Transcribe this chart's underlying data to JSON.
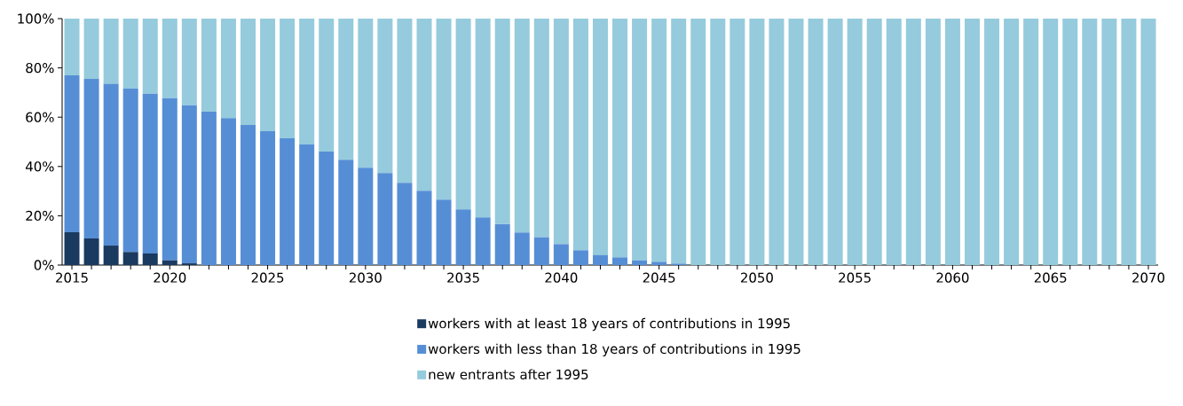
{
  "chart_data": {
    "type": "bar",
    "stacked": true,
    "categories": [
      "2015",
      null,
      null,
      null,
      null,
      "2020",
      null,
      null,
      null,
      null,
      "2025",
      null,
      null,
      null,
      null,
      "2030",
      null,
      null,
      null,
      null,
      "2035",
      null,
      null,
      null,
      null,
      "2040",
      null,
      null,
      null,
      null,
      "2045",
      null,
      null,
      null,
      null,
      "2050",
      null,
      null,
      null,
      null,
      "2055",
      null,
      null,
      null,
      null,
      "2060",
      null,
      null,
      null,
      null,
      "2065",
      null,
      null,
      null,
      null,
      "2070"
    ],
    "series": [
      {
        "name": "workers with at least 18 years of contributions in 1995",
        "color": "#1a3a5f",
        "values": [
          13.3,
          10.8,
          7.9,
          5.3,
          4.7,
          1.9,
          0.7,
          0,
          0,
          0,
          0,
          0,
          0,
          0,
          0,
          0,
          0,
          0,
          0,
          0,
          0,
          0,
          0,
          0,
          0,
          0,
          0,
          0,
          0,
          0,
          0,
          0,
          0,
          0,
          0,
          0,
          0,
          0,
          0,
          0,
          0,
          0,
          0,
          0,
          0,
          0,
          0,
          0,
          0,
          0,
          0,
          0,
          0,
          0,
          0,
          0
        ]
      },
      {
        "name": "workers with less than 18 years of contributions in 1995",
        "color": "#568ed6",
        "values": [
          63.7,
          64.7,
          65.7,
          66.3,
          64.8,
          65.8,
          64.1,
          62.2,
          59.6,
          56.8,
          54.3,
          51.4,
          48.9,
          46.0,
          42.7,
          39.5,
          37.3,
          33.4,
          30.1,
          26.5,
          22.6,
          19.3,
          16.6,
          13.2,
          11.3,
          8.5,
          6.0,
          4.0,
          3.1,
          1.9,
          1.3,
          0.6,
          0,
          0,
          0,
          0,
          0,
          0,
          0,
          0,
          0,
          0,
          0,
          0,
          0,
          0,
          0,
          0,
          0,
          0,
          0,
          0,
          0,
          0,
          0,
          0
        ]
      },
      {
        "name": "new entrants after 1995",
        "color": "#95cbdc",
        "values": [
          23.0,
          24.5,
          26.4,
          28.4,
          30.5,
          32.3,
          35.2,
          37.8,
          40.4,
          43.2,
          45.7,
          48.6,
          51.1,
          54.0,
          57.3,
          60.5,
          62.7,
          66.6,
          69.9,
          73.5,
          77.4,
          80.7,
          83.4,
          86.8,
          88.7,
          91.5,
          94.0,
          96.0,
          96.9,
          98.1,
          98.7,
          99.4,
          100,
          100,
          100,
          100,
          100,
          100,
          100,
          100,
          100,
          100,
          100,
          100,
          100,
          100,
          100,
          100,
          100,
          100,
          100,
          100,
          100,
          100,
          100,
          100
        ]
      }
    ],
    "ylim": [
      0,
      100
    ],
    "yticks": [
      {
        "value": 0,
        "label": "0%"
      },
      {
        "value": 20,
        "label": "20%"
      },
      {
        "value": 40,
        "label": "40%"
      },
      {
        "value": 60,
        "label": "60%"
      },
      {
        "value": 80,
        "label": "80%"
      },
      {
        "value": 100,
        "label": "100%"
      }
    ],
    "grid": false,
    "legend": "bottom"
  }
}
